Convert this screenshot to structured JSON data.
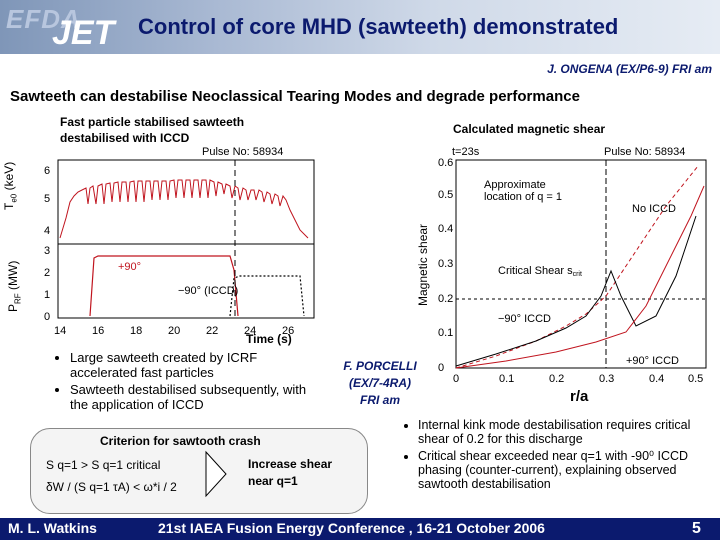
{
  "header": {
    "title": "Control of core MHD (sawteeth) demonstrated",
    "logo_efda": "EFDA",
    "logo_jet": "JET",
    "author": "J. ONGENA (EX/P6-9) FRI am"
  },
  "subtitle": "Sawteeth can destabilise Neoclassical Tearing Modes and degrade performance",
  "left_plot": {
    "caption_line1": "Fast particle stabilised sawteeth",
    "caption_line2": "destabilised with ICCD",
    "pulse": "Pulse No: 58934",
    "ylabel_top": "T",
    "ylabel_top_sub": "e0",
    "ylabel_top_unit": " (keV)",
    "ylabel_bottom": "P",
    "ylabel_bottom_sub": "RF",
    "ylabel_bottom_unit": " (MW)",
    "xlabel": "Time (s)",
    "label_plus90": "+90°",
    "label_minus90": "−90° (ICCD)",
    "xticks": [
      "14",
      "16",
      "18",
      "20",
      "22",
      "24",
      "26"
    ],
    "yticks_top": [
      "4",
      "5",
      "6"
    ],
    "yticks_bottom": [
      "0",
      "1",
      "2",
      "3"
    ]
  },
  "right_plot": {
    "caption": "Calculated magnetic shear",
    "time": "t=23s",
    "pulse": "Pulse No: 58934",
    "ylabel": "Magnetic shear",
    "xlabel": "r/a",
    "ann_q1_line1": "Approximate",
    "ann_q1_line2": "location of q = 1",
    "ann_noiccd": "No ICCD",
    "ann_critical": "Critical Shear s",
    "ann_critical_sub": "crit",
    "ann_minus90": "−90° ICCD",
    "ann_plus90": "+90° ICCD",
    "xticks": [
      "0",
      "0.1",
      "0.2",
      "0.3",
      "0.4",
      "0.5"
    ],
    "yticks": [
      "0",
      "0.1",
      "0.2",
      "0.3",
      "0.4",
      "0.5",
      "0.6"
    ]
  },
  "bullets_left": [
    "Large sawteeth created by ICRF accelerated fast particles",
    "Sawteeth destabilised subsequently, with the application of ICCD"
  ],
  "porcelli": {
    "line1": "F. PORCELLI",
    "line2": "(EX/7-4RA)",
    "line3": "FRI am"
  },
  "criterion": {
    "title": "Criterion for sawtooth crash",
    "line1": "S q=1 > S q=1 critical",
    "line2": "δW / (S q=1 τA) < ω*i / 2",
    "result_line1": "Increase shear",
    "result_line2": "near q=1"
  },
  "bullets_right": [
    "Internal kink mode destabilisation requires critical shear of 0.2 for this discharge",
    "Critical shear exceeded near q=1 with -90⁰ ICCD phasing (counter-current), explaining observed sawtooth destabilisation"
  ],
  "footer": {
    "name": "M. L. Watkins",
    "conference": "21st IAEA Fusion Energy Conference , 16-21 October 2006",
    "page": "5"
  },
  "colors": {
    "header_blue": "#0b1a6e",
    "curve_red": "#c0141e",
    "curve_black": "#000000"
  }
}
